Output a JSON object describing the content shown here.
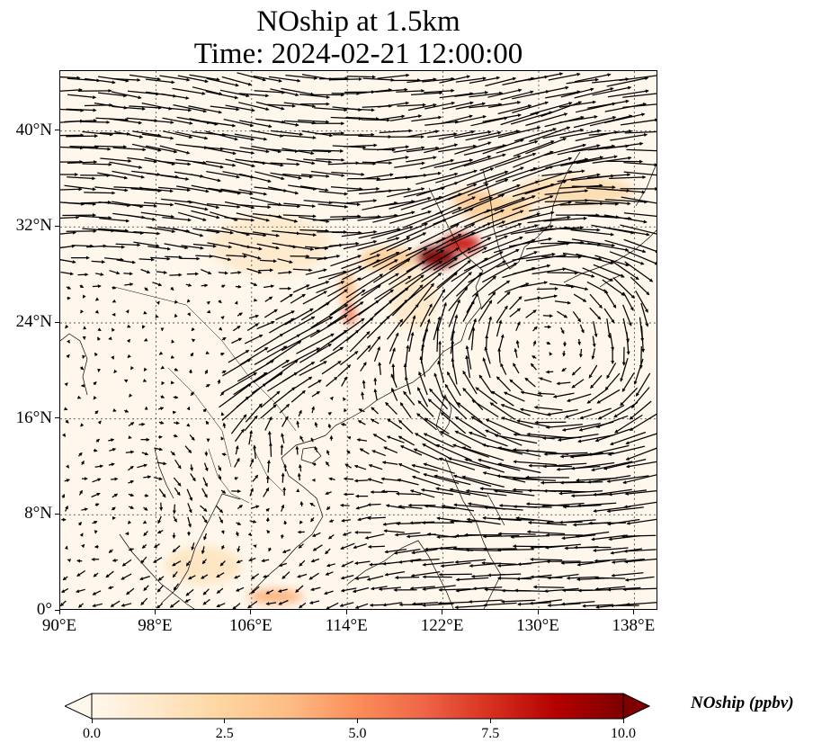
{
  "title": {
    "line1": "NOship at 1.5km",
    "line2": "Time: 2024-02-21 12:00:00"
  },
  "map": {
    "lon_range": [
      90,
      140
    ],
    "lat_range": [
      0,
      45
    ],
    "gridlines": "dotted",
    "background_color": "#fff7ec",
    "vector_color": "#000000",
    "coastline_color": "#000000"
  },
  "axes": {
    "x_ticks": [
      {
        "value": 90,
        "label": "90°E"
      },
      {
        "value": 98,
        "label": "98°E"
      },
      {
        "value": 106,
        "label": "106°E"
      },
      {
        "value": 114,
        "label": "114°E"
      },
      {
        "value": 122,
        "label": "122°E"
      },
      {
        "value": 130,
        "label": "130°E"
      },
      {
        "value": 138,
        "label": "138°E"
      }
    ],
    "y_ticks": [
      {
        "value": 0,
        "label": "0°"
      },
      {
        "value": 8,
        "label": "8°N"
      },
      {
        "value": 16,
        "label": "16°N"
      },
      {
        "value": 24,
        "label": "24°N"
      },
      {
        "value": 32,
        "label": "32°N"
      },
      {
        "value": 40,
        "label": "40°N"
      }
    ]
  },
  "colorbar": {
    "label": "NOship (ppbv)",
    "min": 0,
    "max": 10,
    "ticks": [
      {
        "value": 0,
        "label": "0.0"
      },
      {
        "value": 2.5,
        "label": "2.5"
      },
      {
        "value": 5,
        "label": "5.0"
      },
      {
        "value": 7.5,
        "label": "7.5"
      },
      {
        "value": 10,
        "label": "10.0"
      }
    ],
    "colormap": [
      "#fff7ec",
      "#fee8c8",
      "#fdd49e",
      "#fdbb84",
      "#fc8d59",
      "#ef6548",
      "#d7301f",
      "#b30000",
      "#7f0000"
    ],
    "extend": "both"
  },
  "concentration_hotspots": [
    {
      "lon": 121.5,
      "lat": 29.5,
      "value": 10.0,
      "rlon": 1.6,
      "rlat": 0.9
    },
    {
      "lon": 123.5,
      "lat": 30.6,
      "value": 8.0,
      "rlon": 1.6,
      "rlat": 0.8
    },
    {
      "lon": 114.2,
      "lat": 24.7,
      "value": 5.5,
      "rlon": 0.5,
      "rlat": 0.9
    },
    {
      "lon": 114.0,
      "lat": 26.8,
      "value": 3.5,
      "rlon": 0.6,
      "rlat": 1.5
    },
    {
      "lon": 117.5,
      "lat": 29.3,
      "value": 2.8,
      "rlon": 2.5,
      "rlat": 1.0
    },
    {
      "lon": 126.5,
      "lat": 33.5,
      "value": 2.5,
      "rlon": 3.0,
      "rlat": 1.1
    },
    {
      "lon": 133.0,
      "lat": 35.0,
      "value": 2.0,
      "rlon": 5.0,
      "rlat": 1.2
    },
    {
      "lon": 124.5,
      "lat": 34.3,
      "value": 3.0,
      "rlon": 1.8,
      "rlat": 0.8
    },
    {
      "lon": 108.0,
      "lat": 1.2,
      "value": 4.0,
      "rlon": 2.3,
      "rlat": 0.6
    },
    {
      "lon": 102.0,
      "lat": 3.8,
      "value": 1.4,
      "rlon": 3.2,
      "rlat": 1.6
    },
    {
      "lon": 107.5,
      "lat": 30.5,
      "value": 1.1,
      "rlon": 5.0,
      "rlat": 2.5
    },
    {
      "lon": 119.5,
      "lat": 26.0,
      "value": 1.2,
      "rlon": 2.0,
      "rlat": 2.5
    }
  ]
}
